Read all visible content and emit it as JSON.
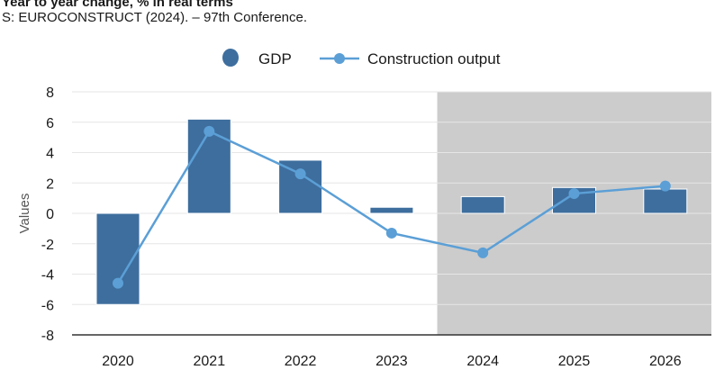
{
  "header": {
    "title": "Year to year change, % in real terms",
    "source": "S: EUROCONSTRUCT (2024). – 97th Conference."
  },
  "colors": {
    "gdp_bar": "#3e6e9e",
    "construction_line": "#5b9fd6",
    "forecast_shade": "#cccccc",
    "grid": "#e6e6e6",
    "axis": "#333333"
  },
  "chart_data": {
    "type": "bar",
    "title": "Year to year change, % in real terms",
    "xlabel": "",
    "ylabel": "Values",
    "categories": [
      "2020",
      "2021",
      "2022",
      "2023",
      "2024",
      "2025",
      "2026"
    ],
    "ylim": [
      -8,
      8
    ],
    "yticks": [
      8,
      6,
      4,
      2,
      0,
      -2,
      -4,
      -6,
      -8
    ],
    "shaded_from_category": "2024",
    "legend_position": "top-center",
    "series": [
      {
        "name": "GDP",
        "kind": "bar",
        "values": [
          -6.0,
          6.2,
          3.5,
          0.4,
          1.1,
          1.7,
          1.6
        ]
      },
      {
        "name": "Construction output",
        "kind": "line",
        "values": [
          -4.6,
          5.4,
          2.6,
          -1.3,
          -2.6,
          1.3,
          1.8
        ]
      }
    ]
  }
}
